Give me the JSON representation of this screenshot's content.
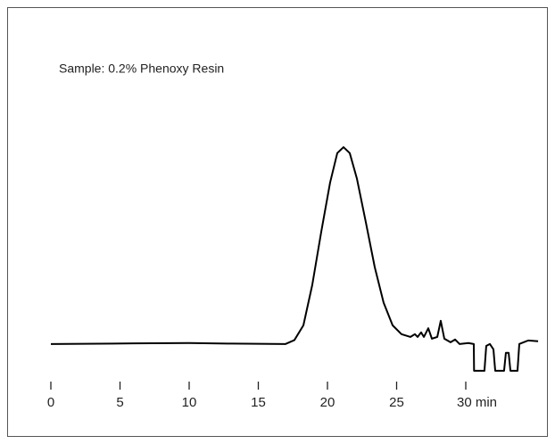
{
  "chart_data": {
    "type": "line",
    "title": "Sample: 0.2% Phenoxy Resin",
    "x": [
      0,
      6,
      10,
      13.1,
      16.97,
      17.61,
      18.26,
      18.9,
      19.55,
      20.19,
      20.71,
      21.16,
      21.61,
      22.13,
      22.77,
      23.42,
      24.06,
      24.71,
      25.35,
      26.0,
      26.32,
      26.52,
      26.77,
      26.97,
      27.29,
      27.55,
      27.94,
      28.19,
      28.45,
      28.9,
      29.23,
      29.55,
      30.19,
      30.58,
      30.6,
      31.35,
      31.48,
      31.74,
      32.0,
      32.13,
      32.77,
      32.9,
      33.1,
      33.23,
      33.74,
      33.87,
      34.52,
      35.23
    ],
    "series": [
      {
        "color": "#000000",
        "values": [
          0,
          0.3,
          0.5,
          0.2,
          0,
          2,
          9.5,
          30,
          57,
          82,
          97,
          100,
          97,
          84,
          62,
          39,
          21,
          9.5,
          5,
          3.6,
          5,
          3.6,
          5.9,
          3.6,
          8,
          2.7,
          3.6,
          11.8,
          2.7,
          0.9,
          2.3,
          0,
          0.5,
          0,
          -13.6,
          -13.6,
          -1,
          0,
          -2.7,
          -13.6,
          -13.6,
          -4.5,
          -4.5,
          -13.6,
          -13.6,
          0,
          1.8,
          1.4
        ]
      }
    ],
    "xlim": [
      0,
      35.5
    ],
    "xticks": [
      0,
      5,
      10,
      15,
      20,
      25,
      {
        "value": 30,
        "label": "30 min"
      }
    ],
    "ylim": [
      -20,
      110
    ],
    "grid": false
  }
}
